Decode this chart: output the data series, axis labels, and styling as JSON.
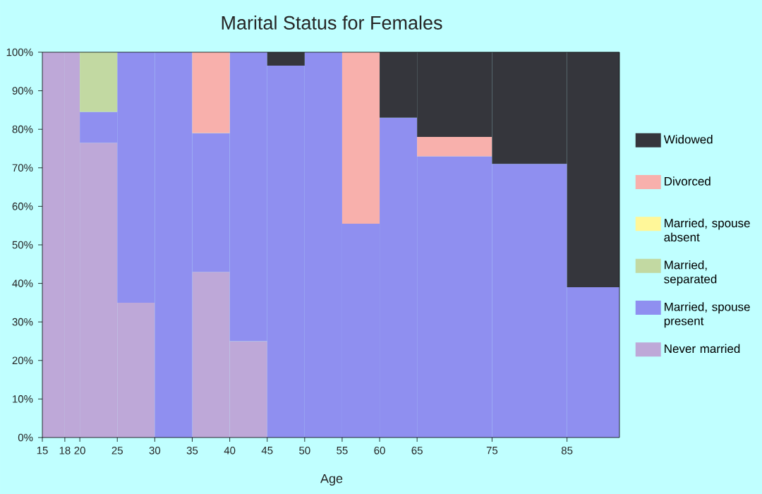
{
  "chart_data": {
    "type": "bar",
    "stacked": true,
    "title": "Marital Status for Females",
    "xlabel": "Age",
    "x": [
      16.5,
      19,
      22.5,
      27.5,
      32.5,
      37.5,
      42.5,
      47.5,
      52.5,
      57.5,
      62.5,
      70,
      80,
      88.5
    ],
    "xlim": [
      15,
      92
    ],
    "xticks": [
      15,
      18,
      20,
      25,
      30,
      35,
      40,
      45,
      50,
      55,
      60,
      65,
      75,
      85
    ],
    "ylim": [
      0,
      100
    ],
    "yticks": [
      {
        "value": 0,
        "label": "0%"
      },
      {
        "value": 10,
        "label": "10%"
      },
      {
        "value": 20,
        "label": "20%"
      },
      {
        "value": 30,
        "label": "30%"
      },
      {
        "value": 40,
        "label": "40%"
      },
      {
        "value": 50,
        "label": "50%"
      },
      {
        "value": 60,
        "label": "60%"
      },
      {
        "value": 70,
        "label": "70%"
      },
      {
        "value": 80,
        "label": "80%"
      },
      {
        "value": 90,
        "label": "90%"
      },
      {
        "value": 100,
        "label": "100%"
      }
    ],
    "legend": "right",
    "series": [
      {
        "name": "Never married",
        "color": "#bea8d8",
        "values": [
          100,
          100,
          76.5,
          35,
          0,
          43,
          25,
          0,
          0,
          0,
          0,
          0,
          0,
          0
        ]
      },
      {
        "name": "Married, spouse present",
        "color": "#8f8ff0",
        "values": [
          0,
          0,
          8,
          65,
          100,
          36,
          75,
          96.5,
          100,
          55.5,
          83,
          73,
          71,
          39
        ]
      },
      {
        "name": "Married, separated",
        "color": "#c2d9a2",
        "values": [
          0,
          0,
          15.5,
          0,
          0,
          0,
          0,
          0,
          0,
          0,
          0,
          0,
          0,
          0
        ]
      },
      {
        "name": "Married, spouse absent",
        "color": "#fff799",
        "values": [
          0,
          0,
          0,
          0,
          0,
          0,
          0,
          0,
          0,
          0,
          0,
          0,
          0,
          0
        ]
      },
      {
        "name": "Divorced",
        "color": "#f8b0ac",
        "values": [
          0,
          0,
          0,
          0,
          0,
          21,
          0,
          0,
          0,
          44.5,
          0,
          5,
          0,
          0
        ]
      },
      {
        "name": "Widowed",
        "color": "#35363c",
        "values": [
          0,
          0,
          0,
          0,
          0,
          0,
          0,
          3.5,
          0,
          0,
          17,
          22,
          29,
          61
        ]
      }
    ]
  }
}
